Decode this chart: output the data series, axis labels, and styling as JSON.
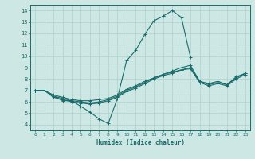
{
  "xlabel": "Humidex (Indice chaleur)",
  "bg_color": "#cde8e4",
  "grid_color": "#b0d0cc",
  "line_color": "#1a6b6b",
  "xlim": [
    -0.5,
    23.5
  ],
  "ylim": [
    3.5,
    14.5
  ],
  "xticks": [
    0,
    1,
    2,
    3,
    4,
    5,
    6,
    7,
    8,
    9,
    10,
    11,
    12,
    13,
    14,
    15,
    16,
    17,
    18,
    19,
    20,
    21,
    22,
    23
  ],
  "yticks": [
    4,
    5,
    6,
    7,
    8,
    9,
    10,
    11,
    12,
    13,
    14
  ],
  "series": [
    {
      "x": [
        0,
        1,
        2,
        3,
        4,
        5,
        6,
        7,
        8,
        9,
        10,
        11,
        12,
        13,
        14,
        15,
        16,
        17,
        18,
        19,
        20,
        21,
        22,
        23
      ],
      "y": [
        7.0,
        7.0,
        6.5,
        6.1,
        6.1,
        5.6,
        5.1,
        4.5,
        4.1,
        6.3,
        9.6,
        10.5,
        11.9,
        13.1,
        13.5,
        14.0,
        13.4,
        9.9,
        null,
        null,
        null,
        null,
        null,
        null
      ]
    },
    {
      "x": [
        0,
        1,
        2,
        3,
        4,
        5,
        6,
        7,
        8,
        9,
        10,
        11,
        12,
        13,
        14,
        15,
        16,
        17,
        18,
        19,
        20,
        21,
        22,
        23
      ],
      "y": [
        7.0,
        7.0,
        6.6,
        6.4,
        6.2,
        6.1,
        6.1,
        6.2,
        6.3,
        6.6,
        7.1,
        7.4,
        7.8,
        8.1,
        8.4,
        8.7,
        9.0,
        9.2,
        7.8,
        7.6,
        7.8,
        7.5,
        8.2,
        8.5
      ]
    },
    {
      "x": [
        0,
        1,
        2,
        3,
        4,
        5,
        6,
        7,
        8,
        9,
        10,
        11,
        12,
        13,
        14,
        15,
        16,
        17,
        18,
        19,
        20,
        21,
        22,
        23
      ],
      "y": [
        7.0,
        7.0,
        6.5,
        6.3,
        6.1,
        6.0,
        5.9,
        6.0,
        6.2,
        6.5,
        7.0,
        7.3,
        7.7,
        8.1,
        8.4,
        8.6,
        8.8,
        9.0,
        7.8,
        7.5,
        7.7,
        7.5,
        8.1,
        8.5
      ]
    },
    {
      "x": [
        0,
        1,
        2,
        3,
        4,
        5,
        6,
        7,
        8,
        9,
        10,
        11,
        12,
        13,
        14,
        15,
        16,
        17,
        18,
        19,
        20,
        21,
        22,
        23
      ],
      "y": [
        7.0,
        7.0,
        6.4,
        6.2,
        6.0,
        5.9,
        5.8,
        5.9,
        6.1,
        6.4,
        6.9,
        7.2,
        7.6,
        8.0,
        8.3,
        8.5,
        8.8,
        8.9,
        7.7,
        7.4,
        7.6,
        7.4,
        8.0,
        8.4
      ]
    }
  ]
}
